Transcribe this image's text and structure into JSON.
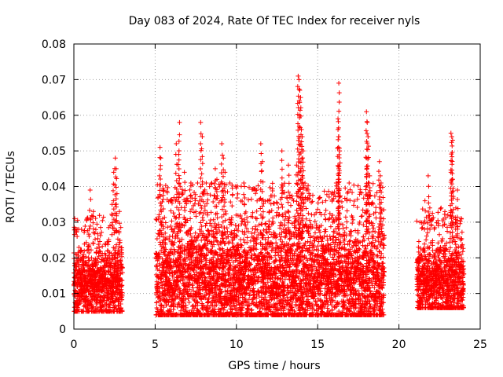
{
  "chart_data": {
    "type": "scatter",
    "title": "Day 083 of 2024, Rate Of TEC Index for receiver nyls",
    "xlabel": "GPS time / hours",
    "ylabel": "ROTI / TECUs",
    "xlim": [
      0,
      25
    ],
    "ylim": [
      0,
      0.08
    ],
    "x_ticks": [
      0,
      5,
      10,
      15,
      20,
      25
    ],
    "x_tick_labels": [
      "0",
      "5",
      "10",
      "15",
      "20",
      "25"
    ],
    "y_ticks": [
      0,
      0.01,
      0.02,
      0.03,
      0.04,
      0.05,
      0.06,
      0.07,
      0.08
    ],
    "y_tick_labels": [
      "0",
      "0.01",
      "0.02",
      "0.03",
      "0.04",
      "0.05",
      "0.06",
      "0.07",
      "0.08"
    ],
    "grid": true,
    "marker": "+",
    "color": "#ff0000",
    "point_spacing_hours": 0.012,
    "segments": [
      {
        "x_start": 0.0,
        "x_end": 3.0,
        "y_median": 0.013,
        "y_low": 0.005,
        "y_high": 0.026
      },
      {
        "x_start": 5.05,
        "x_end": 19.1,
        "y_median": 0.014,
        "y_low": 0.004,
        "y_high": 0.035
      },
      {
        "x_start": 21.1,
        "x_end": 24.0,
        "y_median": 0.013,
        "y_low": 0.006,
        "y_high": 0.028
      }
    ],
    "peaks": [
      {
        "x": 0.05,
        "y": 0.031
      },
      {
        "x": 0.2,
        "y": 0.026
      },
      {
        "x": 1.0,
        "y": 0.039
      },
      {
        "x": 1.2,
        "y": 0.033
      },
      {
        "x": 2.35,
        "y": 0.035
      },
      {
        "x": 2.45,
        "y": 0.044
      },
      {
        "x": 2.55,
        "y": 0.048
      },
      {
        "x": 2.6,
        "y": 0.045
      },
      {
        "x": 2.65,
        "y": 0.038
      },
      {
        "x": 2.8,
        "y": 0.033
      },
      {
        "x": 5.3,
        "y": 0.051
      },
      {
        "x": 5.35,
        "y": 0.048
      },
      {
        "x": 5.5,
        "y": 0.039
      },
      {
        "x": 6.0,
        "y": 0.036
      },
      {
        "x": 6.3,
        "y": 0.052
      },
      {
        "x": 6.45,
        "y": 0.049
      },
      {
        "x": 6.5,
        "y": 0.058
      },
      {
        "x": 6.8,
        "y": 0.044
      },
      {
        "x": 7.2,
        "y": 0.041
      },
      {
        "x": 7.8,
        "y": 0.058
      },
      {
        "x": 7.9,
        "y": 0.054
      },
      {
        "x": 8.2,
        "y": 0.038
      },
      {
        "x": 8.7,
        "y": 0.045
      },
      {
        "x": 8.8,
        "y": 0.042
      },
      {
        "x": 9.1,
        "y": 0.052
      },
      {
        "x": 9.2,
        "y": 0.048
      },
      {
        "x": 9.3,
        "y": 0.044
      },
      {
        "x": 10.5,
        "y": 0.04
      },
      {
        "x": 11.5,
        "y": 0.052
      },
      {
        "x": 11.6,
        "y": 0.047
      },
      {
        "x": 12.0,
        "y": 0.036
      },
      {
        "x": 12.8,
        "y": 0.05
      },
      {
        "x": 13.2,
        "y": 0.046
      },
      {
        "x": 13.8,
        "y": 0.071
      },
      {
        "x": 13.85,
        "y": 0.07
      },
      {
        "x": 13.9,
        "y": 0.067
      },
      {
        "x": 13.95,
        "y": 0.065
      },
      {
        "x": 14.0,
        "y": 0.056
      },
      {
        "x": 14.05,
        "y": 0.054
      },
      {
        "x": 14.1,
        "y": 0.05
      },
      {
        "x": 13.7,
        "y": 0.046
      },
      {
        "x": 14.3,
        "y": 0.039
      },
      {
        "x": 15.5,
        "y": 0.036
      },
      {
        "x": 16.3,
        "y": 0.069
      },
      {
        "x": 16.25,
        "y": 0.059
      },
      {
        "x": 16.3,
        "y": 0.054
      },
      {
        "x": 16.35,
        "y": 0.05
      },
      {
        "x": 16.3,
        "y": 0.045
      },
      {
        "x": 16.8,
        "y": 0.036
      },
      {
        "x": 18.0,
        "y": 0.061
      },
      {
        "x": 18.05,
        "y": 0.058
      },
      {
        "x": 18.1,
        "y": 0.054
      },
      {
        "x": 18.0,
        "y": 0.048
      },
      {
        "x": 18.2,
        "y": 0.043
      },
      {
        "x": 18.8,
        "y": 0.047
      },
      {
        "x": 18.85,
        "y": 0.043
      },
      {
        "x": 18.9,
        "y": 0.041
      },
      {
        "x": 21.8,
        "y": 0.043
      },
      {
        "x": 21.6,
        "y": 0.036
      },
      {
        "x": 21.9,
        "y": 0.034
      },
      {
        "x": 23.2,
        "y": 0.055
      },
      {
        "x": 23.25,
        "y": 0.054
      },
      {
        "x": 23.3,
        "y": 0.053
      },
      {
        "x": 23.2,
        "y": 0.044
      },
      {
        "x": 23.3,
        "y": 0.042
      },
      {
        "x": 23.6,
        "y": 0.039
      },
      {
        "x": 23.5,
        "y": 0.034
      }
    ]
  }
}
